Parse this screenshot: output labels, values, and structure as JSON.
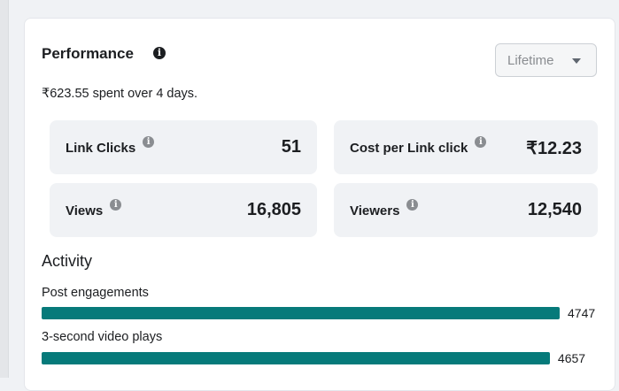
{
  "performance": {
    "title": "Performance",
    "info_icon": "info-icon",
    "period_dropdown": "Lifetime",
    "spent_summary": "₹623.55 spent over 4 days.",
    "metrics": [
      {
        "label": "Link Clicks",
        "value": "51"
      },
      {
        "label": "Cost per Link click",
        "value": "₹12.23"
      },
      {
        "label": "Views",
        "value": "16,805"
      },
      {
        "label": "Viewers",
        "value": "12,540"
      }
    ]
  },
  "activity": {
    "title": "Activity",
    "bar_color": "#067a7a",
    "items": [
      {
        "label": "Post engagements",
        "value": 4747
      },
      {
        "label": "3-second video plays",
        "value": 4657
      }
    ]
  }
}
